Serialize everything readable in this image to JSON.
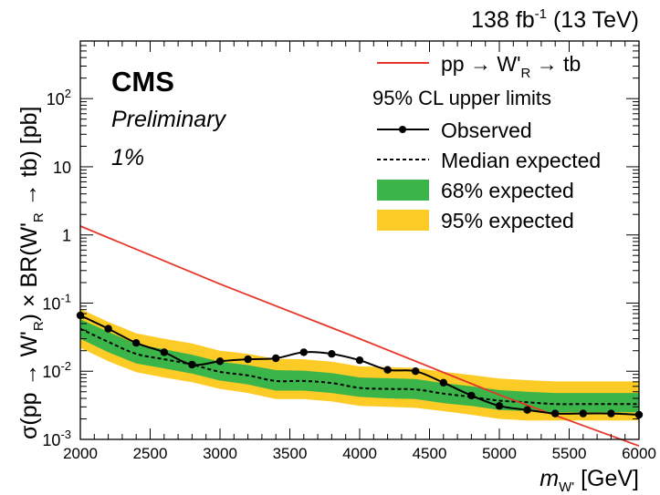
{
  "lumi_label": {
    "lumi": "138 fb",
    "exp": "-1",
    "energy": "(13 TeV)"
  },
  "cms_label": "CMS",
  "preliminary_label": "Preliminary",
  "width_label": "1%",
  "legend": {
    "signal": {
      "prefix": "pp → W'",
      "sub": "R",
      "suffix": " → tb"
    },
    "header": "95% CL upper limits",
    "observed": "Observed",
    "median": "Median expected",
    "band68": "68% expected",
    "band95": "95% expected"
  },
  "xlabel": {
    "main": "m",
    "sub": "W'",
    "unit": " [GeV]"
  },
  "ylabel": {
    "part1": "σ(pp → W'",
    "sub1": "R",
    "part2": ") × BR(W'",
    "sub2": "R",
    "part3": " → tb) [pb]"
  },
  "colors": {
    "signal": "#e8352a",
    "band68": "#3bb54a",
    "band95": "#fdcb26",
    "observed": "#000000",
    "median": "#000000"
  },
  "chart_data": {
    "type": "line",
    "xlim": [
      2000,
      6000
    ],
    "ylim": [
      0.001,
      700
    ],
    "yscale": "log",
    "x_ticks": [
      "2000",
      "2500",
      "3000",
      "3500",
      "4000",
      "4500",
      "5000",
      "5500",
      "6000"
    ],
    "y_ticks": [
      {
        "base": "10",
        "exp": "-3"
      },
      {
        "base": "10",
        "exp": "-2"
      },
      {
        "base": "10",
        "exp": "-1"
      },
      {
        "base": "1",
        "exp": ""
      },
      {
        "base": "10",
        "exp": ""
      },
      {
        "base": "10",
        "exp": "2"
      }
    ],
    "y_tick_values": [
      0.001,
      0.01,
      0.1,
      1,
      10,
      100
    ],
    "legend_position": "top-right",
    "series": [
      {
        "name": "pp → W'R → tb",
        "x": [
          2000,
          3000,
          4000,
          5000,
          6000
        ],
        "y": [
          1.35,
          0.19,
          0.03,
          0.0045,
          0.0008
        ]
      },
      {
        "name": "Observed",
        "x": [
          2000,
          2200,
          2400,
          2600,
          2800,
          3000,
          3200,
          3400,
          3600,
          3800,
          4000,
          4200,
          4400,
          4600,
          4800,
          5000,
          5200,
          5400,
          5600,
          5800,
          6000
        ],
        "y": [
          0.066,
          0.042,
          0.026,
          0.019,
          0.0125,
          0.014,
          0.015,
          0.0155,
          0.019,
          0.018,
          0.0145,
          0.0105,
          0.01,
          0.0068,
          0.0044,
          0.0031,
          0.0027,
          0.0024,
          0.0024,
          0.0024,
          0.0023
        ]
      },
      {
        "name": "Median expected",
        "x": [
          2000,
          2200,
          2400,
          2600,
          2800,
          3000,
          3200,
          3400,
          3600,
          3800,
          4000,
          4200,
          4400,
          4600,
          4800,
          5000,
          5200,
          5400,
          5600,
          5800,
          6000
        ],
        "y": [
          0.042,
          0.027,
          0.018,
          0.015,
          0.0125,
          0.0098,
          0.0087,
          0.0072,
          0.0072,
          0.0067,
          0.0057,
          0.0055,
          0.0054,
          0.0047,
          0.0042,
          0.0037,
          0.0035,
          0.0033,
          0.0033,
          0.0033,
          0.0033
        ]
      },
      {
        "name": "68% expected",
        "x": [
          2000,
          2200,
          2400,
          2600,
          2800,
          3000,
          3200,
          3400,
          3600,
          3800,
          4000,
          4200,
          4400,
          4600,
          4800,
          5000,
          5200,
          5400,
          5600,
          5800,
          6000
        ],
        "y_low": [
          0.03,
          0.019,
          0.013,
          0.011,
          0.0092,
          0.0073,
          0.0064,
          0.0052,
          0.0052,
          0.0048,
          0.0042,
          0.004,
          0.0039,
          0.0034,
          0.0031,
          0.0027,
          0.0026,
          0.0025,
          0.0025,
          0.0025,
          0.0025
        ],
        "y_high": [
          0.058,
          0.038,
          0.025,
          0.021,
          0.0175,
          0.0138,
          0.0123,
          0.0104,
          0.0102,
          0.0094,
          0.0081,
          0.0079,
          0.0077,
          0.0067,
          0.006,
          0.0053,
          0.005,
          0.0048,
          0.0048,
          0.0048,
          0.0048
        ]
      },
      {
        "name": "95% expected",
        "x": [
          2000,
          2200,
          2400,
          2600,
          2800,
          3000,
          3200,
          3400,
          3600,
          3800,
          4000,
          4200,
          4400,
          4600,
          4800,
          5000,
          5200,
          5400,
          5600,
          5800,
          6000
        ],
        "y_low": [
          0.022,
          0.014,
          0.0097,
          0.0081,
          0.0069,
          0.0055,
          0.0048,
          0.0039,
          0.0039,
          0.0036,
          0.0031,
          0.003,
          0.0029,
          0.0026,
          0.0023,
          0.002,
          0.0019,
          0.0019,
          0.0019,
          0.0019,
          0.0019
        ],
        "y_high": [
          0.082,
          0.053,
          0.036,
          0.03,
          0.0255,
          0.02,
          0.018,
          0.0152,
          0.015,
          0.0138,
          0.0118,
          0.0115,
          0.0112,
          0.0098,
          0.0088,
          0.0078,
          0.0074,
          0.0071,
          0.0071,
          0.0071,
          0.0071
        ]
      }
    ]
  }
}
